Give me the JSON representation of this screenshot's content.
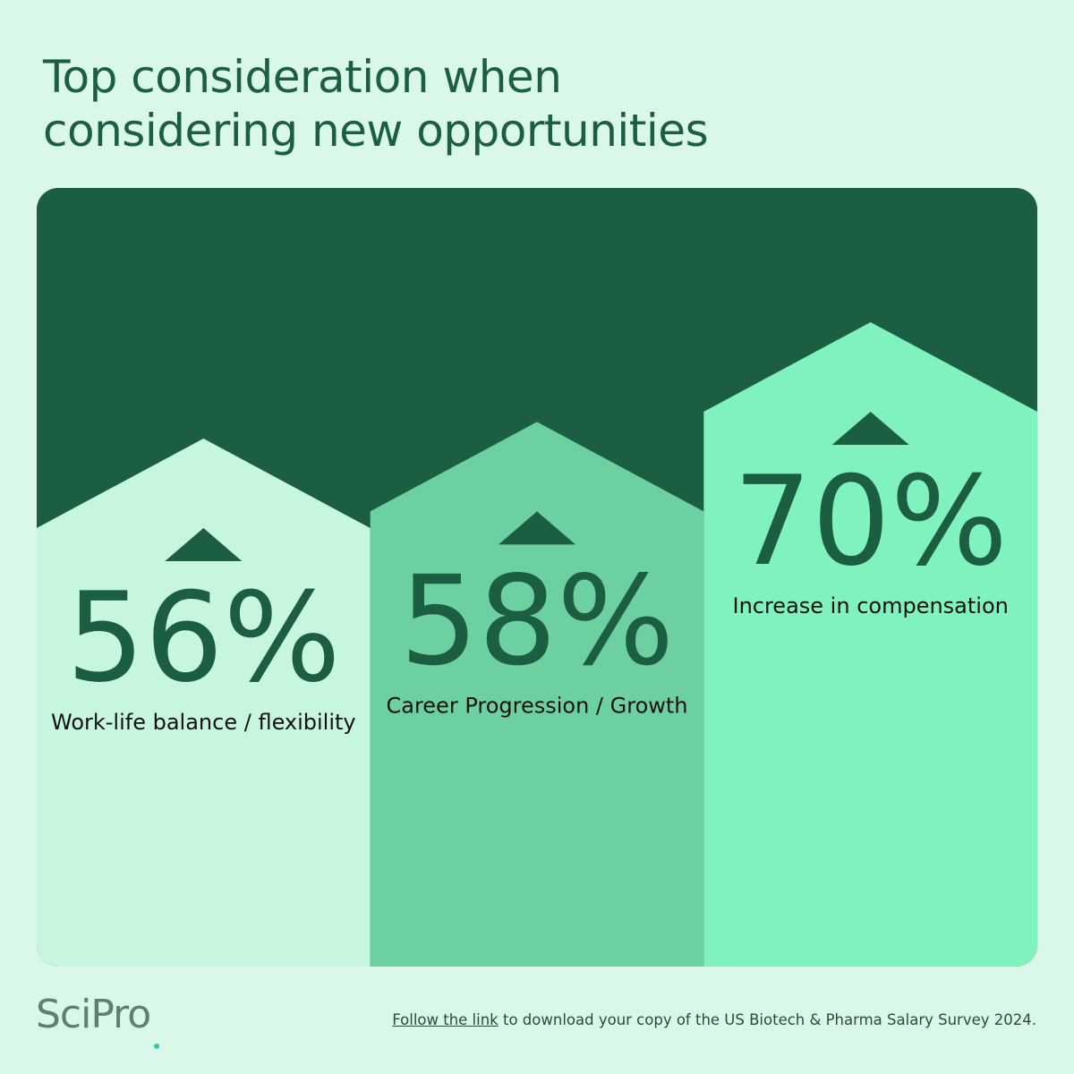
{
  "title_line1": "Top consideration when",
  "title_line2": "considering new opportunities",
  "colors": {
    "background": "#d9f8e9",
    "card_dark": "#1b5e42",
    "bars": [
      "#c6f6de",
      "#6dd0a0",
      "#80f2bd"
    ],
    "text_dark": "#1b5e42"
  },
  "chart_data": {
    "type": "bar",
    "categories": [
      "Work-life balance / flexibility",
      "Career Progression / Growth",
      "Increase in compensation"
    ],
    "values": [
      56,
      58,
      70
    ],
    "value_labels": [
      "56%",
      "58%",
      "70%"
    ],
    "title": "Top consideration when considering new opportunities",
    "unit": "%"
  },
  "footer": {
    "link_text": "Follow the link",
    "rest_text": " to download your copy of the US Biotech & Pharma Salary Survey 2024."
  },
  "brand": {
    "logo_text": "SciPro",
    "logo_icon": "magnifier-dot-icon"
  }
}
